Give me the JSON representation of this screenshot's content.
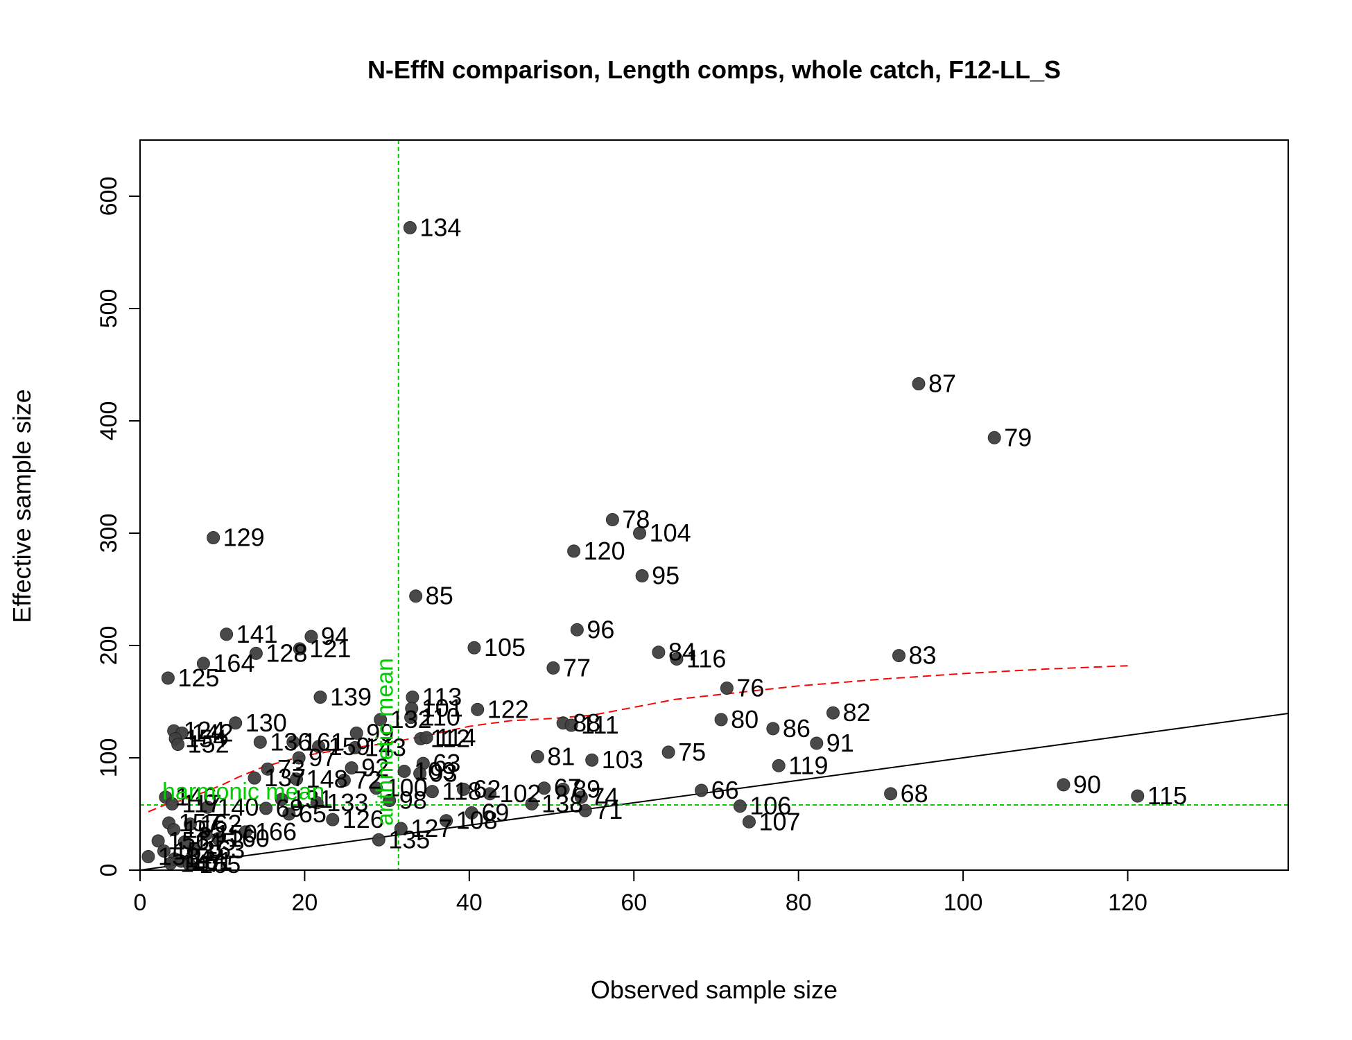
{
  "chart_data": {
    "type": "scatter",
    "title": "N-EffN comparison, Length comps, whole catch, F12-LL_S",
    "xlabel": "Observed sample size",
    "ylabel": "Effective sample size",
    "xlim": [
      0,
      139.5
    ],
    "ylim": [
      0,
      650
    ],
    "x_ticks": [
      0,
      20,
      40,
      60,
      80,
      100,
      120
    ],
    "y_ticks": [
      0,
      100,
      200,
      300,
      400,
      500,
      600
    ],
    "points": [
      {
        "label": "134",
        "x": 32.8,
        "y": 572
      },
      {
        "label": "87",
        "x": 94.6,
        "y": 433
      },
      {
        "label": "79",
        "x": 103.8,
        "y": 385
      },
      {
        "label": "78",
        "x": 57.4,
        "y": 312
      },
      {
        "label": "104",
        "x": 60.7,
        "y": 300
      },
      {
        "label": "129",
        "x": 8.9,
        "y": 296
      },
      {
        "label": "120",
        "x": 52.7,
        "y": 284
      },
      {
        "label": "95",
        "x": 61.0,
        "y": 262
      },
      {
        "label": "85",
        "x": 33.5,
        "y": 244
      },
      {
        "label": "96",
        "x": 53.1,
        "y": 214
      },
      {
        "label": "141",
        "x": 10.5,
        "y": 210
      },
      {
        "label": "94",
        "x": 20.8,
        "y": 208
      },
      {
        "label": "105",
        "x": 40.6,
        "y": 198
      },
      {
        "label": "121",
        "x": 19.4,
        "y": 197
      },
      {
        "label": "128",
        "x": 14.1,
        "y": 193
      },
      {
        "label": "84",
        "x": 63.0,
        "y": 194
      },
      {
        "label": "83",
        "x": 92.2,
        "y": 191
      },
      {
        "label": "116",
        "x": 65.2,
        "y": 188
      },
      {
        "label": "164",
        "x": 7.7,
        "y": 184
      },
      {
        "label": "77",
        "x": 50.2,
        "y": 180
      },
      {
        "label": "125",
        "x": 3.4,
        "y": 171
      },
      {
        "label": "76",
        "x": 71.3,
        "y": 162
      },
      {
        "label": "139",
        "x": 21.9,
        "y": 154
      },
      {
        "label": "113",
        "x": 33.1,
        "y": 154
      },
      {
        "label": "122",
        "x": 41.0,
        "y": 143
      },
      {
        "label": "101",
        "x": 33.0,
        "y": 144
      },
      {
        "label": "82",
        "x": 84.2,
        "y": 140
      },
      {
        "label": "132",
        "x": 29.2,
        "y": 134
      },
      {
        "label": "110",
        "x": 32.9,
        "y": 136
      },
      {
        "label": "80",
        "x": 70.6,
        "y": 134
      },
      {
        "label": "88",
        "x": 51.4,
        "y": 131
      },
      {
        "label": "111",
        "x": 52.4,
        "y": 129
      },
      {
        "label": "130",
        "x": 11.6,
        "y": 131
      },
      {
        "label": "124",
        "x": 4.1,
        "y": 124
      },
      {
        "label": "142",
        "x": 5.1,
        "y": 122
      },
      {
        "label": "86",
        "x": 76.9,
        "y": 126
      },
      {
        "label": "99",
        "x": 26.3,
        "y": 122
      },
      {
        "label": "136",
        "x": 14.6,
        "y": 114
      },
      {
        "label": "154",
        "x": 4.3,
        "y": 117
      },
      {
        "label": "152",
        "x": 4.6,
        "y": 112
      },
      {
        "label": "161",
        "x": 18.6,
        "y": 114
      },
      {
        "label": "159",
        "x": 21.7,
        "y": 110
      },
      {
        "label": "112",
        "x": 34.1,
        "y": 117
      },
      {
        "label": "114",
        "x": 34.8,
        "y": 118
      },
      {
        "label": "91",
        "x": 82.2,
        "y": 113
      },
      {
        "label": "143",
        "x": 26.1,
        "y": 109
      },
      {
        "label": "75",
        "x": 64.2,
        "y": 105
      },
      {
        "label": "97",
        "x": 19.3,
        "y": 100
      },
      {
        "label": "81",
        "x": 48.3,
        "y": 101
      },
      {
        "label": "103",
        "x": 54.9,
        "y": 98
      },
      {
        "label": "63",
        "x": 34.4,
        "y": 95
      },
      {
        "label": "119",
        "x": 77.6,
        "y": 93
      },
      {
        "label": "92",
        "x": 25.7,
        "y": 91
      },
      {
        "label": "73",
        "x": 15.5,
        "y": 90
      },
      {
        "label": "109",
        "x": 32.1,
        "y": 88
      },
      {
        "label": "93",
        "x": 34.0,
        "y": 86
      },
      {
        "label": "137",
        "x": 13.9,
        "y": 82
      },
      {
        "label": "148",
        "x": 19.0,
        "y": 81
      },
      {
        "label": "72",
        "x": 24.8,
        "y": 80
      },
      {
        "label": "90",
        "x": 112.2,
        "y": 76
      },
      {
        "label": "100",
        "x": 28.7,
        "y": 73
      },
      {
        "label": "62",
        "x": 39.3,
        "y": 72
      },
      {
        "label": "67",
        "x": 49.1,
        "y": 73
      },
      {
        "label": "89",
        "x": 51.4,
        "y": 72
      },
      {
        "label": "66",
        "x": 68.2,
        "y": 71
      },
      {
        "label": "68",
        "x": 91.2,
        "y": 68
      },
      {
        "label": "115",
        "x": 121.2,
        "y": 66
      },
      {
        "label": "118",
        "x": 35.5,
        "y": 70
      },
      {
        "label": "102",
        "x": 42.5,
        "y": 68
      },
      {
        "label": "74",
        "x": 53.6,
        "y": 65
      },
      {
        "label": "146",
        "x": 3.1,
        "y": 65
      },
      {
        "label": "131",
        "x": 17.2,
        "y": 63
      },
      {
        "label": "98",
        "x": 30.3,
        "y": 62
      },
      {
        "label": "133",
        "x": 21.5,
        "y": 60
      },
      {
        "label": "117",
        "x": 3.9,
        "y": 59
      },
      {
        "label": "138",
        "x": 47.6,
        "y": 59
      },
      {
        "label": "71",
        "x": 54.1,
        "y": 53
      },
      {
        "label": "106",
        "x": 72.9,
        "y": 57
      },
      {
        "label": "140",
        "x": 8.2,
        "y": 56
      },
      {
        "label": "69",
        "x": 15.3,
        "y": 55
      },
      {
        "label": "65",
        "x": 18.1,
        "y": 50
      },
      {
        "label": "69b",
        "x": 40.3,
        "y": 51
      },
      {
        "label": "126",
        "x": 23.4,
        "y": 45
      },
      {
        "label": "108",
        "x": 37.2,
        "y": 44
      },
      {
        "label": "107",
        "x": 74.0,
        "y": 43
      },
      {
        "label": "157",
        "x": 3.5,
        "y": 42
      },
      {
        "label": "162",
        "x": 6.1,
        "y": 41
      },
      {
        "label": "127",
        "x": 31.7,
        "y": 37
      },
      {
        "label": "155",
        "x": 4.1,
        "y": 36
      },
      {
        "label": "166",
        "x": 12.8,
        "y": 34
      },
      {
        "label": "150",
        "x": 8.0,
        "y": 32
      },
      {
        "label": "135",
        "x": 29.0,
        "y": 27
      },
      {
        "label": "160",
        "x": 9.5,
        "y": 28
      },
      {
        "label": "156",
        "x": 2.2,
        "y": 26
      },
      {
        "label": "145",
        "x": 5.4,
        "y": 25
      },
      {
        "label": "163",
        "x": 6.5,
        "y": 18
      },
      {
        "label": "153",
        "x": 2.9,
        "y": 17
      },
      {
        "label": "158",
        "x": 1.0,
        "y": 12
      },
      {
        "label": "144",
        "x": 4.2,
        "y": 10
      },
      {
        "label": "151",
        "x": 5.0,
        "y": 8
      },
      {
        "label": "147",
        "x": 3.7,
        "y": 6
      },
      {
        "label": "165",
        "x": 6.0,
        "y": 5
      }
    ],
    "smoother": {
      "x": [
        1,
        3,
        5,
        8,
        10,
        12,
        15,
        20,
        25,
        30,
        35,
        40,
        45,
        50,
        55,
        60,
        65,
        70,
        75,
        80,
        90,
        100,
        110,
        120
      ],
      "y": [
        52,
        58,
        62,
        70,
        76,
        83,
        92,
        102,
        108,
        113,
        120,
        128,
        133,
        135,
        138,
        145,
        152,
        156,
        160,
        164,
        170,
        175,
        179,
        182
      ]
    },
    "reference_lines": {
      "one_to_one": true,
      "harmonic_mean": {
        "label": "harmonic mean",
        "value": 58
      },
      "arithmetic_mean": {
        "label": "arithmetic mean",
        "value": 31.4
      }
    }
  }
}
